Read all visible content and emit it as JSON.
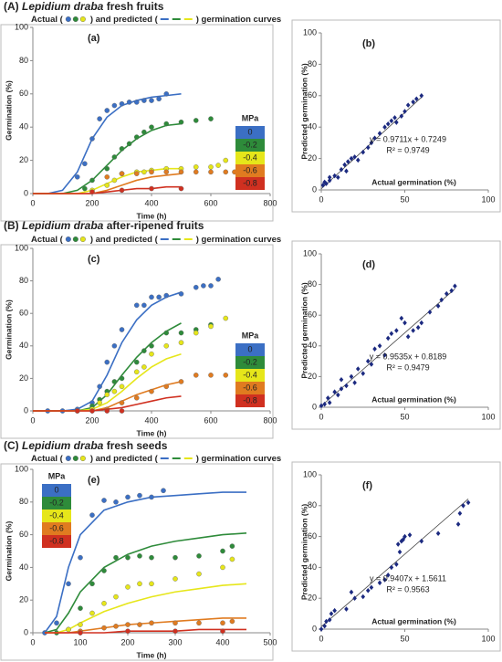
{
  "chart_data": [
    {
      "type": "line",
      "label": "(A)",
      "species": "Lepidium draba",
      "title": "fresh fruits",
      "subtitle_parts": [
        "Actual (",
        ") and predicted (",
        ") germination curves"
      ],
      "panel_label": "(a)",
      "x_label": "Time (h)",
      "y_label": "Germination (%)",
      "xlim": [
        0,
        800
      ],
      "xticks": [
        0,
        200,
        400,
        600,
        800
      ],
      "ylim": [
        0,
        100
      ],
      "yticks": [
        0,
        20,
        40,
        60,
        80,
        100
      ],
      "legend_title": "MPa",
      "legend_position": "right",
      "curve_x": [
        0,
        50,
        100,
        150,
        200,
        250,
        300,
        350,
        400,
        450,
        500
      ],
      "series": [
        {
          "name": "0",
          "color": "#3b6fc4",
          "x": [
            150,
            175,
            200,
            225,
            250,
            275,
            300,
            325,
            350,
            375,
            400,
            425,
            450
          ],
          "values": [
            10,
            18,
            33,
            45,
            50,
            53,
            54,
            55,
            55,
            56,
            56,
            57,
            60
          ],
          "predicted": [
            0,
            0,
            2,
            13,
            33,
            46,
            53,
            56,
            58,
            59,
            60
          ]
        },
        {
          "name": "-0.2",
          "color": "#2e8b3a",
          "x": [
            175,
            200,
            250,
            275,
            300,
            325,
            350,
            375,
            400,
            450,
            500,
            550,
            600
          ],
          "values": [
            3,
            8,
            15,
            22,
            27,
            30,
            34,
            37,
            40,
            42,
            43,
            44,
            45
          ],
          "predicted": [
            0,
            0,
            0,
            2,
            8,
            17,
            26,
            33,
            38,
            41,
            42
          ]
        },
        {
          "name": "-0.4",
          "color": "#e6e61a",
          "x": [
            200,
            250,
            275,
            300,
            350,
            375,
            400,
            450,
            500,
            550,
            600,
            625,
            650
          ],
          "values": [
            2,
            5,
            8,
            12,
            13,
            13,
            14,
            15,
            15,
            16,
            16,
            17,
            20
          ],
          "predicted": [
            0,
            0,
            0,
            0,
            2,
            6,
            10,
            13,
            14,
            15,
            15
          ]
        },
        {
          "name": "-0.6",
          "color": "#e07b20",
          "x": [
            250,
            300,
            350,
            400,
            450,
            500,
            550,
            600,
            650,
            680
          ],
          "values": [
            10,
            12,
            12,
            13,
            13,
            13,
            13,
            13,
            13,
            13
          ],
          "predicted": [
            0,
            0,
            0,
            0,
            0,
            2,
            5,
            8,
            10,
            11,
            12
          ]
        },
        {
          "name": "-0.8",
          "color": "#d03020",
          "x": [
            200,
            300,
            400,
            500
          ],
          "values": [
            1,
            2,
            3,
            3
          ],
          "predicted": [
            0,
            0,
            0,
            0,
            0,
            1,
            2,
            3,
            3,
            4,
            4
          ]
        }
      ]
    },
    {
      "type": "scatter",
      "panel_label": "(b)",
      "x_label": "Actual germination (%)",
      "y_label": "Predicted germination (%)",
      "xlim": [
        0,
        100
      ],
      "xticks": [
        0,
        50,
        100
      ],
      "ylim": [
        0,
        100
      ],
      "yticks": [
        0,
        20,
        40,
        60,
        80,
        100
      ],
      "color": "#1c2a80",
      "equation": "y = 0.9711x + 0.7249",
      "r_squared": "R² = 0.9749",
      "fit": {
        "slope": 0.9711,
        "intercept": 0.7249
      },
      "x": [
        1,
        2,
        3,
        5,
        5,
        8,
        10,
        12,
        14,
        15,
        16,
        18,
        20,
        22,
        25,
        28,
        30,
        32,
        35,
        38,
        40,
        42,
        44,
        45,
        48,
        50,
        52,
        55,
        57,
        60
      ],
      "values": [
        3,
        5,
        4,
        6,
        8,
        9,
        8,
        13,
        16,
        12,
        18,
        20,
        21,
        19,
        24,
        27,
        30,
        33,
        36,
        40,
        42,
        44,
        46,
        43,
        47,
        50,
        54,
        56,
        58,
        60
      ]
    },
    {
      "type": "line",
      "label": "(B)",
      "species": "Lepidium draba",
      "title": "after-ripened fruits",
      "subtitle_parts": [
        "Actual (",
        ") and predicted (",
        ") germination curves"
      ],
      "panel_label": "(c)",
      "x_label": "Time (h)",
      "y_label": "Germination (%)",
      "xlim": [
        0,
        800
      ],
      "xticks": [
        0,
        200,
        400,
        600,
        800
      ],
      "ylim": [
        0,
        100
      ],
      "yticks": [
        0,
        20,
        40,
        60,
        80,
        100
      ],
      "legend_title": "MPa",
      "legend_position": "right",
      "curve_x": [
        0,
        50,
        100,
        150,
        200,
        250,
        300,
        350,
        400,
        450,
        500
      ],
      "series": [
        {
          "name": "0",
          "color": "#3b6fc4",
          "x": [
            50,
            100,
            150,
            200,
            225,
            250,
            275,
            300,
            350,
            375,
            400,
            425,
            450,
            500,
            550,
            575,
            600,
            625
          ],
          "values": [
            0,
            0,
            1,
            5,
            15,
            30,
            40,
            50,
            65,
            65,
            70,
            70,
            71,
            72,
            76,
            77,
            77,
            81
          ],
          "predicted": [
            0,
            0,
            0,
            1,
            6,
            22,
            42,
            56,
            65,
            70,
            73
          ]
        },
        {
          "name": "-0.2",
          "color": "#2e8b3a",
          "x": [
            150,
            200,
            225,
            250,
            275,
            300,
            350,
            375,
            400,
            450,
            500,
            550,
            600
          ],
          "values": [
            0,
            3,
            7,
            12,
            18,
            20,
            30,
            37,
            40,
            48,
            48,
            50,
            53
          ],
          "predicted": [
            0,
            0,
            0,
            0,
            2,
            10,
            22,
            33,
            42,
            49,
            54
          ]
        },
        {
          "name": "-0.4",
          "color": "#e6e61a",
          "x": [
            200,
            225,
            250,
            275,
            300,
            350,
            375,
            400,
            450,
            500,
            550,
            600,
            650
          ],
          "values": [
            1,
            5,
            10,
            12,
            15,
            24,
            27,
            35,
            40,
            42,
            48,
            52,
            57
          ],
          "predicted": [
            0,
            0,
            0,
            0,
            1,
            5,
            12,
            20,
            27,
            32,
            35
          ]
        },
        {
          "name": "-0.6",
          "color": "#e07b20",
          "x": [
            250,
            300,
            350,
            400,
            450,
            500,
            550,
            600,
            650
          ],
          "values": [
            1,
            5,
            8,
            12,
            15,
            18,
            22,
            22,
            22
          ],
          "predicted": [
            0,
            0,
            0,
            0,
            0,
            2,
            6,
            10,
            13,
            16,
            18
          ]
        },
        {
          "name": "-0.8",
          "color": "#d03020",
          "x": [
            150,
            200,
            250,
            300
          ],
          "values": [
            0,
            0,
            0,
            0
          ],
          "predicted": [
            0,
            0,
            0,
            0,
            0,
            1,
            2,
            4,
            6,
            8,
            9
          ]
        }
      ]
    },
    {
      "type": "scatter",
      "panel_label": "(d)",
      "x_label": "Actual germination (%)",
      "y_label": "Predicted germination (%)",
      "xlim": [
        0,
        100
      ],
      "xticks": [
        0,
        50,
        100
      ],
      "ylim": [
        0,
        100
      ],
      "yticks": [
        0,
        20,
        40,
        60,
        80,
        100
      ],
      "color": "#1c2a80",
      "equation": "y = 0.9535x + 0.8189",
      "r_squared": "R² = 0.9479",
      "fit": {
        "slope": 0.9535,
        "intercept": 0.8189
      },
      "x": [
        0,
        2,
        4,
        5,
        8,
        10,
        12,
        12,
        15,
        18,
        20,
        22,
        25,
        28,
        30,
        32,
        35,
        38,
        40,
        42,
        45,
        48,
        50,
        52,
        55,
        58,
        60,
        65,
        70,
        72,
        75,
        78,
        80
      ],
      "values": [
        1,
        2,
        6,
        3,
        10,
        8,
        12,
        18,
        14,
        20,
        16,
        25,
        22,
        30,
        28,
        38,
        40,
        34,
        45,
        48,
        50,
        58,
        55,
        46,
        50,
        52,
        55,
        62,
        66,
        70,
        74,
        76,
        79
      ]
    },
    {
      "type": "line",
      "label": "(C)",
      "species": "Lepidium draba",
      "title": "fresh seeds",
      "subtitle_parts": [
        "Actual (",
        ") and predicted (",
        ") germination curves"
      ],
      "panel_label": "(e)",
      "x_label": "Time (h)",
      "y_label": "Germination (%)",
      "xlim": [
        0,
        500
      ],
      "xticks": [
        0,
        100,
        200,
        300,
        400,
        500
      ],
      "ylim": [
        0,
        100
      ],
      "yticks": [
        0,
        20,
        40,
        60,
        80,
        100
      ],
      "legend_title": "MPa",
      "legend_position": "upper left",
      "curve_x": [
        25,
        50,
        75,
        100,
        150,
        200,
        250,
        300,
        350,
        400,
        450
      ],
      "series": [
        {
          "name": "0",
          "color": "#3b6fc4",
          "x": [
            25,
            50,
            75,
            100,
            125,
            150,
            175,
            200,
            225,
            250,
            275
          ],
          "values": [
            0,
            6,
            30,
            46,
            72,
            81,
            80,
            83,
            84,
            83,
            87
          ],
          "predicted": [
            0,
            10,
            40,
            60,
            75,
            80,
            83,
            84,
            85,
            86,
            86
          ]
        },
        {
          "name": "-0.2",
          "color": "#2e8b3a",
          "x": [
            50,
            75,
            100,
            125,
            150,
            175,
            200,
            225,
            250,
            300,
            350,
            400,
            420
          ],
          "values": [
            0,
            2,
            15,
            30,
            38,
            46,
            46,
            47,
            46,
            46,
            47,
            50,
            53
          ],
          "predicted": [
            0,
            2,
            12,
            25,
            40,
            48,
            53,
            56,
            58,
            60,
            61
          ]
        },
        {
          "name": "-0.4",
          "color": "#e6e61a",
          "x": [
            75,
            100,
            125,
            150,
            175,
            200,
            225,
            250,
            300,
            350,
            400,
            420
          ],
          "values": [
            2,
            5,
            12,
            18,
            22,
            28,
            30,
            30,
            33,
            36,
            40,
            45
          ],
          "predicted": [
            0,
            0,
            2,
            6,
            13,
            18,
            22,
            25,
            27,
            29,
            30
          ]
        },
        {
          "name": "-0.6",
          "color": "#e07b20",
          "x": [
            100,
            150,
            175,
            200,
            225,
            250,
            300,
            350,
            400,
            420
          ],
          "values": [
            1,
            3,
            4,
            5,
            5,
            6,
            6,
            6,
            6,
            7
          ],
          "predicted": [
            0,
            0,
            0,
            1,
            3,
            5,
            6,
            7,
            8,
            9,
            9
          ]
        },
        {
          "name": "-0.8",
          "color": "#d03020",
          "x": [
            100,
            200,
            300,
            400
          ],
          "values": [
            0,
            1,
            1,
            1
          ],
          "predicted": [
            0,
            0,
            0,
            0,
            0,
            1,
            1,
            1,
            2,
            2,
            2
          ]
        }
      ]
    },
    {
      "type": "scatter",
      "panel_label": "(f)",
      "x_label": "Actual germination (%)",
      "y_label": "Predicted germination (%)",
      "xlim": [
        0,
        100
      ],
      "xticks": [
        0,
        50,
        100
      ],
      "ylim": [
        0,
        100
      ],
      "yticks": [
        0,
        20,
        40,
        60,
        80,
        100
      ],
      "color": "#1c2a80",
      "equation": "y = 0.9407x + 1.5611",
      "r_squared": "R² = 0.9563",
      "fit": {
        "slope": 0.9407,
        "intercept": 1.5611
      },
      "x": [
        0,
        2,
        3,
        5,
        6,
        8,
        15,
        18,
        20,
        25,
        28,
        30,
        35,
        38,
        40,
        42,
        45,
        46,
        47,
        48,
        49,
        50,
        53,
        60,
        70,
        82,
        83,
        85,
        88
      ],
      "values": [
        0,
        2,
        5,
        6,
        10,
        12,
        13,
        24,
        20,
        21,
        25,
        27,
        30,
        32,
        35,
        40,
        42,
        55,
        50,
        57,
        58,
        60,
        61,
        57,
        62,
        68,
        75,
        80,
        82
      ]
    }
  ]
}
